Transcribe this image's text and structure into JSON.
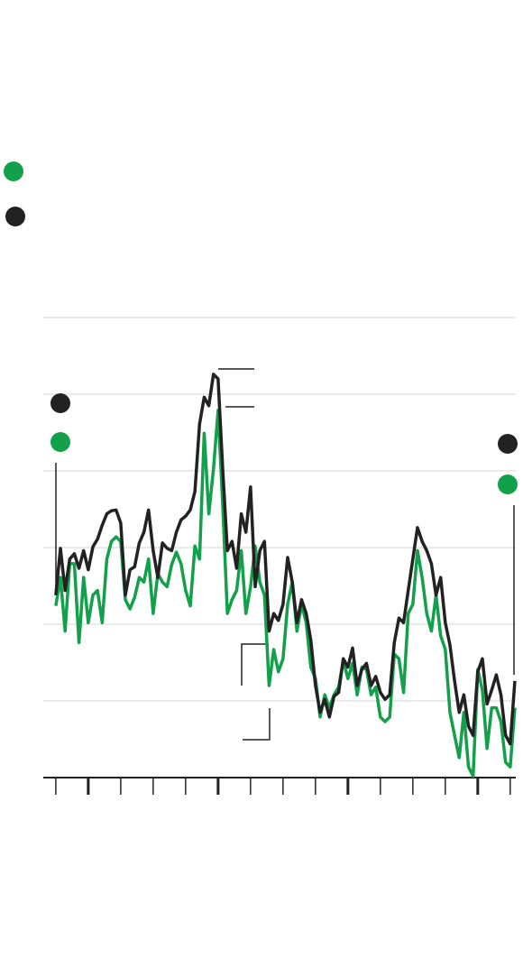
{
  "chart_data": {
    "type": "line",
    "x": [
      0,
      1,
      2,
      3,
      4,
      5,
      6,
      7,
      8,
      9,
      10,
      11,
      12,
      13,
      14,
      15,
      16,
      17,
      18,
      19,
      20,
      21,
      22,
      23,
      24,
      25,
      26,
      27,
      28,
      29,
      30,
      31,
      32,
      33,
      34,
      35,
      36,
      37,
      38,
      39,
      40,
      41,
      42,
      43,
      44,
      45,
      46,
      47,
      48,
      49,
      50,
      51,
      52,
      53,
      54,
      55,
      56,
      57,
      58,
      59,
      60,
      61,
      62,
      63,
      64,
      65,
      66,
      67,
      68,
      69,
      70,
      71,
      72,
      73,
      74,
      75,
      76,
      77,
      78,
      79,
      80,
      81,
      82,
      83,
      84,
      85,
      86,
      87,
      88,
      89,
      90,
      91,
      92,
      93,
      94,
      95,
      96,
      97,
      98,
      99
    ],
    "series": [
      {
        "color": "#12a04a",
        "values": [
          2.24,
          2.61,
          1.91,
          2.79,
          2.79,
          1.76,
          2.61,
          2.02,
          2.38,
          2.44,
          2.02,
          2.85,
          3.08,
          3.14,
          3.08,
          2.32,
          2.2,
          2.35,
          2.61,
          2.55,
          2.85,
          2.14,
          2.66,
          2.55,
          2.49,
          2.78,
          2.94,
          2.79,
          2.44,
          2.24,
          3.02,
          2.85,
          4.49,
          3.44,
          4.02,
          4.79,
          3.55,
          2.14,
          2.32,
          2.44,
          2.96,
          2.14,
          2.49,
          3.02,
          2.55,
          2.38,
          1.2,
          1.67,
          1.38,
          1.55,
          2.26,
          2.55,
          1.91,
          2.26,
          2.02,
          1.44,
          1.29,
          0.79,
          1.08,
          0.91,
          1.08,
          1.18,
          1.53,
          1.29,
          1.49,
          1.08,
          1.44,
          1.41,
          1.08,
          1.18,
          0.79,
          0.73,
          0.79,
          1.61,
          1.55,
          1.11,
          2.14,
          2.26,
          2.96,
          2.61,
          2.14,
          1.91,
          2.38,
          1.85,
          1.67,
          0.85,
          0.55,
          0.26,
          0.85,
          0.14,
          0.02,
          1.41,
          1.14,
          0.38,
          0.91,
          0.91,
          0.73,
          0.2,
          0.14,
          0.91
        ]
      },
      {
        "color": "#222222",
        "values": [
          2.38,
          2.99,
          2.44,
          2.85,
          2.92,
          2.73,
          2.96,
          2.71,
          3.01,
          3.11,
          3.29,
          3.44,
          3.48,
          3.49,
          3.32,
          2.38,
          2.71,
          2.75,
          3.06,
          3.2,
          3.49,
          2.96,
          2.61,
          3.06,
          2.99,
          2.96,
          3.2,
          3.36,
          3.41,
          3.49,
          3.73,
          4.61,
          4.96,
          4.85,
          5.26,
          5.2,
          4.02,
          2.96,
          3.08,
          2.73,
          3.44,
          3.2,
          3.79,
          2.49,
          2.96,
          3.08,
          1.91,
          2.14,
          2.05,
          2.26,
          2.87,
          2.55,
          2.02,
          2.32,
          2.14,
          1.79,
          1.2,
          0.85,
          1.02,
          0.79,
          1.06,
          1.11,
          1.55,
          1.44,
          1.69,
          1.2,
          1.41,
          1.49,
          1.2,
          1.32,
          1.11,
          1.02,
          1.08,
          1.76,
          2.08,
          2.02,
          2.44,
          2.85,
          3.26,
          3.08,
          2.96,
          2.79,
          2.38,
          2.61,
          2.02,
          1.73,
          1.26,
          0.85,
          1.08,
          0.67,
          0.55,
          1.38,
          1.55,
          0.96,
          1.14,
          1.34,
          1.08,
          0.55,
          0.44,
          1.26
        ]
      }
    ],
    "xlim": [
      -2.7,
      99.2
    ],
    "xticks": [
      0,
      7,
      14,
      21,
      28,
      35,
      42,
      49,
      56,
      63,
      70,
      77,
      84,
      91,
      98
    ],
    "xticks_major": [
      7,
      35,
      63,
      91
    ],
    "ylim": [
      0,
      6
    ],
    "yticks": [
      0,
      1,
      2,
      3,
      4,
      5,
      6
    ],
    "grid": true
  }
}
